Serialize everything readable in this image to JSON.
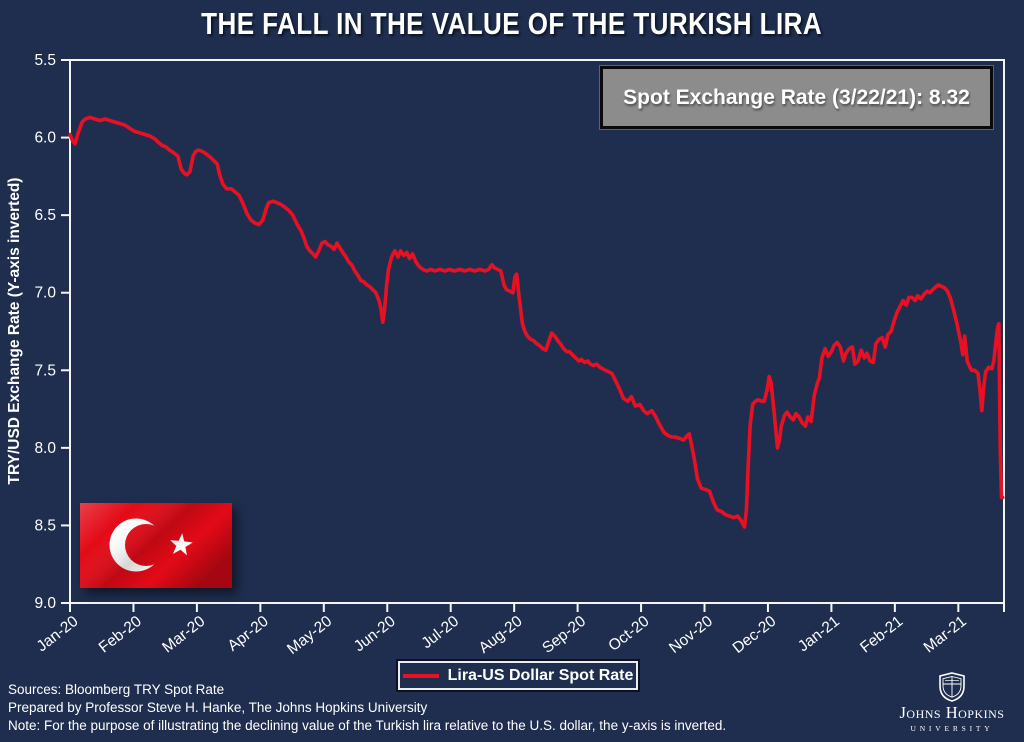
{
  "annotation": {
    "text": "Spot Exchange Rate (3/22/21): 8.32"
  },
  "footer": {
    "sources": "Sources: Bloomberg TRY Spot Rate",
    "prepared": "Prepared by Professor Steve H. Hanke, The Johns Hopkins University",
    "note": "Note: For the purpose of illustrating the declining value of the Turkish lira relative to the U.S. dollar, the y-axis is inverted."
  },
  "logo": {
    "line1": "Johns Hopkins",
    "line2": "UNIVERSITY"
  },
  "colors": {
    "background": "#1f2e4f",
    "line": "#e81123",
    "flag_red": "#e30a17",
    "annotation_bg": "#8c8c8c",
    "annotation_border": "#0a0a0a",
    "axis": "#f5f5f5",
    "text": "#ffffff"
  },
  "chart_data": {
    "type": "line",
    "title": "THE FALL IN THE VALUE OF THE TURKISH LIRA",
    "xlabel": "",
    "ylabel": "TRY/USD Exchange Rate (Y-axis inverted)",
    "y_inverted": true,
    "grid": false,
    "legend_position": "bottom-center",
    "y_ticks": [
      5.5,
      6.0,
      6.5,
      7.0,
      7.5,
      8.0,
      8.5,
      9.0
    ],
    "y_range": [
      5.5,
      9.0
    ],
    "x_unit": "months since Jan-2020 (decimal)",
    "x_range": [
      0,
      14.72
    ],
    "x_tick_labels": [
      "Jan-20",
      "Feb-20",
      "Mar-20",
      "Apr-20",
      "May-20",
      "Jun-20",
      "Jul-20",
      "Aug-20",
      "Sep-20",
      "Oct-20",
      "Nov-20",
      "Dec-20",
      "Jan-21",
      "Feb-21",
      "Mar-21"
    ],
    "annotation": "Spot Exchange Rate (3/22/21): 8.32",
    "last_value": 8.32,
    "last_date": "3/22/21",
    "series": [
      {
        "name": "Lira-US Dollar Spot Rate",
        "points": [
          [
            0.0,
            5.98
          ],
          [
            0.04,
            6.02
          ],
          [
            0.08,
            6.04
          ],
          [
            0.13,
            5.97
          ],
          [
            0.19,
            5.9
          ],
          [
            0.24,
            5.88
          ],
          [
            0.31,
            5.87
          ],
          [
            0.39,
            5.88
          ],
          [
            0.47,
            5.89
          ],
          [
            0.55,
            5.88
          ],
          [
            0.63,
            5.89
          ],
          [
            0.71,
            5.9
          ],
          [
            0.79,
            5.91
          ],
          [
            0.87,
            5.92
          ],
          [
            0.94,
            5.94
          ],
          [
            1.02,
            5.96
          ],
          [
            1.1,
            5.97
          ],
          [
            1.18,
            5.98
          ],
          [
            1.26,
            5.99
          ],
          [
            1.34,
            6.01
          ],
          [
            1.39,
            6.03
          ],
          [
            1.45,
            6.05
          ],
          [
            1.51,
            6.06
          ],
          [
            1.57,
            6.08
          ],
          [
            1.64,
            6.1
          ],
          [
            1.7,
            6.12
          ],
          [
            1.75,
            6.2
          ],
          [
            1.8,
            6.23
          ],
          [
            1.84,
            6.24
          ],
          [
            1.89,
            6.22
          ],
          [
            1.94,
            6.12
          ],
          [
            1.98,
            6.09
          ],
          [
            2.03,
            6.08
          ],
          [
            2.09,
            6.09
          ],
          [
            2.16,
            6.11
          ],
          [
            2.22,
            6.13
          ],
          [
            2.27,
            6.15
          ],
          [
            2.32,
            6.17
          ],
          [
            2.36,
            6.24
          ],
          [
            2.41,
            6.3
          ],
          [
            2.47,
            6.33
          ],
          [
            2.54,
            6.33
          ],
          [
            2.6,
            6.35
          ],
          [
            2.66,
            6.37
          ],
          [
            2.72,
            6.42
          ],
          [
            2.79,
            6.49
          ],
          [
            2.85,
            6.53
          ],
          [
            2.91,
            6.55
          ],
          [
            2.98,
            6.56
          ],
          [
            3.04,
            6.53
          ],
          [
            3.09,
            6.46
          ],
          [
            3.13,
            6.42
          ],
          [
            3.2,
            6.41
          ],
          [
            3.26,
            6.42
          ],
          [
            3.32,
            6.43
          ],
          [
            3.39,
            6.45
          ],
          [
            3.45,
            6.47
          ],
          [
            3.51,
            6.5
          ],
          [
            3.58,
            6.56
          ],
          [
            3.64,
            6.6
          ],
          [
            3.69,
            6.65
          ],
          [
            3.73,
            6.7
          ],
          [
            3.78,
            6.73
          ],
          [
            3.83,
            6.75
          ],
          [
            3.87,
            6.77
          ],
          [
            3.92,
            6.73
          ],
          [
            3.97,
            6.68
          ],
          [
            4.02,
            6.67
          ],
          [
            4.06,
            6.69
          ],
          [
            4.11,
            6.7
          ],
          [
            4.16,
            6.72
          ],
          [
            4.21,
            6.68
          ],
          [
            4.25,
            6.71
          ],
          [
            4.3,
            6.74
          ],
          [
            4.35,
            6.77
          ],
          [
            4.39,
            6.8
          ],
          [
            4.44,
            6.82
          ],
          [
            4.49,
            6.86
          ],
          [
            4.54,
            6.89
          ],
          [
            4.58,
            6.92
          ],
          [
            4.63,
            6.93
          ],
          [
            4.68,
            6.95
          ],
          [
            4.72,
            6.96
          ],
          [
            4.77,
            6.98
          ],
          [
            4.82,
            7.0
          ],
          [
            4.87,
            7.05
          ],
          [
            4.9,
            7.1
          ],
          [
            4.93,
            7.19
          ],
          [
            4.96,
            7.1
          ],
          [
            4.99,
            6.95
          ],
          [
            5.02,
            6.85
          ],
          [
            5.06,
            6.78
          ],
          [
            5.09,
            6.75
          ],
          [
            5.12,
            6.73
          ],
          [
            5.17,
            6.77
          ],
          [
            5.21,
            6.73
          ],
          [
            5.26,
            6.76
          ],
          [
            5.31,
            6.74
          ],
          [
            5.35,
            6.78
          ],
          [
            5.4,
            6.75
          ],
          [
            5.45,
            6.8
          ],
          [
            5.5,
            6.83
          ],
          [
            5.56,
            6.85
          ],
          [
            5.62,
            6.86
          ],
          [
            5.69,
            6.85
          ],
          [
            5.75,
            6.86
          ],
          [
            5.83,
            6.85
          ],
          [
            5.91,
            6.86
          ],
          [
            5.98,
            6.85
          ],
          [
            6.06,
            6.86
          ],
          [
            6.14,
            6.85
          ],
          [
            6.22,
            6.86
          ],
          [
            6.3,
            6.85
          ],
          [
            6.38,
            6.86
          ],
          [
            6.46,
            6.85
          ],
          [
            6.54,
            6.86
          ],
          [
            6.6,
            6.85
          ],
          [
            6.65,
            6.82
          ],
          [
            6.69,
            6.84
          ],
          [
            6.74,
            6.85
          ],
          [
            6.79,
            6.86
          ],
          [
            6.84,
            6.95
          ],
          [
            6.88,
            6.98
          ],
          [
            6.93,
            6.99
          ],
          [
            6.98,
            7.0
          ],
          [
            7.01,
            6.9
          ],
          [
            7.04,
            6.88
          ],
          [
            7.07,
            7.0
          ],
          [
            7.1,
            7.1
          ],
          [
            7.13,
            7.2
          ],
          [
            7.17,
            7.25
          ],
          [
            7.21,
            7.28
          ],
          [
            7.26,
            7.3
          ],
          [
            7.31,
            7.31
          ],
          [
            7.36,
            7.33
          ],
          [
            7.4,
            7.34
          ],
          [
            7.45,
            7.36
          ],
          [
            7.5,
            7.37
          ],
          [
            7.54,
            7.32
          ],
          [
            7.59,
            7.26
          ],
          [
            7.64,
            7.28
          ],
          [
            7.69,
            7.31
          ],
          [
            7.73,
            7.33
          ],
          [
            7.78,
            7.36
          ],
          [
            7.83,
            7.38
          ],
          [
            7.87,
            7.38
          ],
          [
            7.92,
            7.4
          ],
          [
            7.97,
            7.42
          ],
          [
            8.02,
            7.44
          ],
          [
            8.06,
            7.43
          ],
          [
            8.11,
            7.45
          ],
          [
            8.16,
            7.44
          ],
          [
            8.2,
            7.46
          ],
          [
            8.25,
            7.47
          ],
          [
            8.3,
            7.46
          ],
          [
            8.35,
            7.48
          ],
          [
            8.39,
            7.49
          ],
          [
            8.44,
            7.5
          ],
          [
            8.49,
            7.51
          ],
          [
            8.54,
            7.52
          ],
          [
            8.6,
            7.57
          ],
          [
            8.66,
            7.62
          ],
          [
            8.72,
            7.68
          ],
          [
            8.79,
            7.7
          ],
          [
            8.85,
            7.67
          ],
          [
            8.91,
            7.73
          ],
          [
            8.98,
            7.72
          ],
          [
            9.04,
            7.76
          ],
          [
            9.1,
            7.78
          ],
          [
            9.17,
            7.76
          ],
          [
            9.23,
            7.8
          ],
          [
            9.29,
            7.85
          ],
          [
            9.36,
            7.9
          ],
          [
            9.42,
            7.92
          ],
          [
            9.48,
            7.93
          ],
          [
            9.54,
            7.93
          ],
          [
            9.61,
            7.94
          ],
          [
            9.67,
            7.95
          ],
          [
            9.73,
            7.92
          ],
          [
            9.76,
            7.91
          ],
          [
            9.83,
            8.05
          ],
          [
            9.89,
            8.2
          ],
          [
            9.95,
            8.26
          ],
          [
            10.02,
            8.27
          ],
          [
            10.08,
            8.28
          ],
          [
            10.14,
            8.35
          ],
          [
            10.2,
            8.4
          ],
          [
            10.27,
            8.41
          ],
          [
            10.33,
            8.43
          ],
          [
            10.39,
            8.44
          ],
          [
            10.46,
            8.45
          ],
          [
            10.52,
            8.44
          ],
          [
            10.58,
            8.47
          ],
          [
            10.63,
            8.51
          ],
          [
            10.66,
            8.4
          ],
          [
            10.69,
            8.1
          ],
          [
            10.72,
            7.85
          ],
          [
            10.76,
            7.72
          ],
          [
            10.8,
            7.7
          ],
          [
            10.85,
            7.69
          ],
          [
            10.9,
            7.7
          ],
          [
            10.94,
            7.7
          ],
          [
            10.99,
            7.62
          ],
          [
            11.02,
            7.54
          ],
          [
            11.05,
            7.58
          ],
          [
            11.1,
            7.78
          ],
          [
            11.15,
            8.0
          ],
          [
            11.18,
            7.95
          ],
          [
            11.21,
            7.86
          ],
          [
            11.26,
            7.79
          ],
          [
            11.3,
            7.77
          ],
          [
            11.35,
            7.8
          ],
          [
            11.4,
            7.82
          ],
          [
            11.44,
            7.78
          ],
          [
            11.49,
            7.8
          ],
          [
            11.54,
            7.84
          ],
          [
            11.59,
            7.86
          ],
          [
            11.63,
            7.8
          ],
          [
            11.68,
            7.83
          ],
          [
            11.73,
            7.66
          ],
          [
            11.78,
            7.58
          ],
          [
            11.81,
            7.55
          ],
          [
            11.85,
            7.42
          ],
          [
            11.9,
            7.36
          ],
          [
            11.95,
            7.41
          ],
          [
            12.0,
            7.38
          ],
          [
            12.04,
            7.34
          ],
          [
            12.09,
            7.32
          ],
          [
            12.14,
            7.35
          ],
          [
            12.19,
            7.44
          ],
          [
            12.23,
            7.39
          ],
          [
            12.28,
            7.36
          ],
          [
            12.33,
            7.35
          ],
          [
            12.37,
            7.46
          ],
          [
            12.42,
            7.44
          ],
          [
            12.47,
            7.37
          ],
          [
            12.52,
            7.42
          ],
          [
            12.56,
            7.39
          ],
          [
            12.61,
            7.44
          ],
          [
            12.66,
            7.45
          ],
          [
            12.7,
            7.33
          ],
          [
            12.75,
            7.3
          ],
          [
            12.8,
            7.29
          ],
          [
            12.85,
            7.35
          ],
          [
            12.89,
            7.27
          ],
          [
            12.94,
            7.25
          ],
          [
            12.99,
            7.18
          ],
          [
            13.03,
            7.13
          ],
          [
            13.08,
            7.09
          ],
          [
            13.13,
            7.05
          ],
          [
            13.18,
            7.08
          ],
          [
            13.22,
            7.03
          ],
          [
            13.27,
            7.03
          ],
          [
            13.32,
            7.05
          ],
          [
            13.36,
            7.02
          ],
          [
            13.41,
            7.04
          ],
          [
            13.46,
            7.01
          ],
          [
            13.51,
            6.99
          ],
          [
            13.55,
            7.0
          ],
          [
            13.6,
            6.98
          ],
          [
            13.65,
            6.96
          ],
          [
            13.69,
            6.95
          ],
          [
            13.74,
            6.96
          ],
          [
            13.79,
            6.97
          ],
          [
            13.83,
            6.99
          ],
          [
            13.88,
            7.04
          ],
          [
            13.93,
            7.12
          ],
          [
            13.98,
            7.2
          ],
          [
            14.01,
            7.26
          ],
          [
            14.04,
            7.32
          ],
          [
            14.07,
            7.4
          ],
          [
            14.1,
            7.28
          ],
          [
            14.14,
            7.44
          ],
          [
            14.17,
            7.47
          ],
          [
            14.21,
            7.5
          ],
          [
            14.26,
            7.5
          ],
          [
            14.31,
            7.52
          ],
          [
            14.34,
            7.62
          ],
          [
            14.37,
            7.76
          ],
          [
            14.4,
            7.61
          ],
          [
            14.43,
            7.51
          ],
          [
            14.48,
            7.48
          ],
          [
            14.53,
            7.49
          ],
          [
            14.56,
            7.44
          ],
          [
            14.59,
            7.32
          ],
          [
            14.62,
            7.22
          ],
          [
            14.64,
            7.2
          ],
          [
            14.66,
            8.0
          ],
          [
            14.68,
            8.32
          ],
          [
            14.7,
            8.32
          ]
        ]
      }
    ]
  }
}
